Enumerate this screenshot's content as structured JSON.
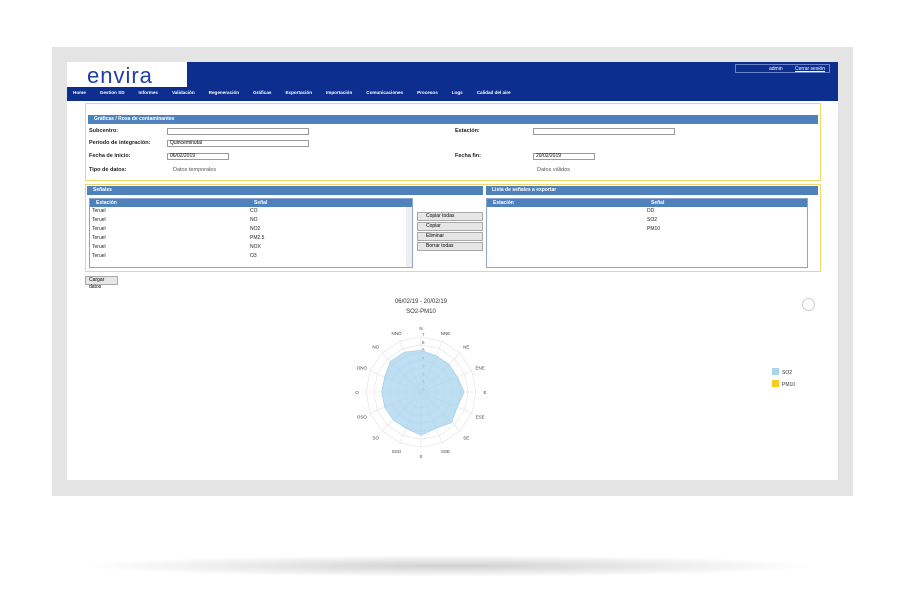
{
  "header": {
    "logo": "envira",
    "user": "admin",
    "logout": "Cerrar sesión"
  },
  "menu": [
    "Home",
    "Gestion SD",
    "Informes",
    "Validación",
    "Regeneración",
    "Gráficas",
    "Exportación",
    "Importación",
    "Comunicaciones",
    "Procesos",
    "Logs",
    "Calidad del aire"
  ],
  "filter": {
    "title": "Gráficas / Rosa de contaminantes",
    "subcentro_label": "Subcentro:",
    "estacion_label": "Estación:",
    "periodo_label": "Período de integración:",
    "periodo_value": "Quinceminutal",
    "inicio_label": "Fecha de inicio:",
    "inicio_value": "06/02/2019",
    "fin_label": "Fecha fin:",
    "fin_value": "20/02/2019",
    "tipo_label": "Tipo de datos:",
    "tipo_option1": "Datos temporales",
    "tipo_option2": "Datos válidos"
  },
  "signals": {
    "title": "Señales",
    "columns": [
      "Estación",
      "Señal"
    ],
    "rows": [
      [
        "Teruel",
        "CO"
      ],
      [
        "Teruel",
        "NO"
      ],
      [
        "Teruel",
        "NO2"
      ],
      [
        "Teruel",
        "PM2.5"
      ],
      [
        "Teruel",
        "NOX"
      ],
      [
        "Teruel",
        "O3"
      ]
    ]
  },
  "buttons": [
    "Copiar todas",
    "Copiar",
    "Eliminar",
    "Borrar todas"
  ],
  "export": {
    "title": "Lista de señales a exportar",
    "columns": [
      "Estación",
      "Señal"
    ],
    "rows": [
      "DD",
      "SO2",
      "PM10"
    ]
  },
  "load_button": "Cargar datos",
  "chart_data": {
    "type": "radar",
    "title": "06/02/19 - 20/02/19",
    "subtitle": "SO2-PM10",
    "categories": [
      "N",
      "NNE",
      "NE",
      "ENE",
      "E",
      "ESE",
      "SE",
      "SSE",
      "S",
      "SSO",
      "SO",
      "OSO",
      "O",
      "ONO",
      "NO",
      "NNO"
    ],
    "ylim": [
      0,
      7
    ],
    "yticks": [
      0,
      1,
      2,
      3,
      4,
      5,
      6,
      7
    ],
    "series": [
      {
        "name": "SO2",
        "color": "#a8d4ec",
        "values": [
          5.3,
          5,
          5,
          5,
          5.5,
          5,
          5.5,
          5,
          5.5,
          5,
          5,
          5,
          5,
          5,
          5.5,
          5.5
        ]
      },
      {
        "name": "PM10",
        "color": "#f5cc1f",
        "values": [
          null,
          null,
          null,
          null,
          null,
          null,
          null,
          null,
          null,
          null,
          null,
          null,
          null,
          null,
          null,
          null
        ]
      }
    ]
  }
}
